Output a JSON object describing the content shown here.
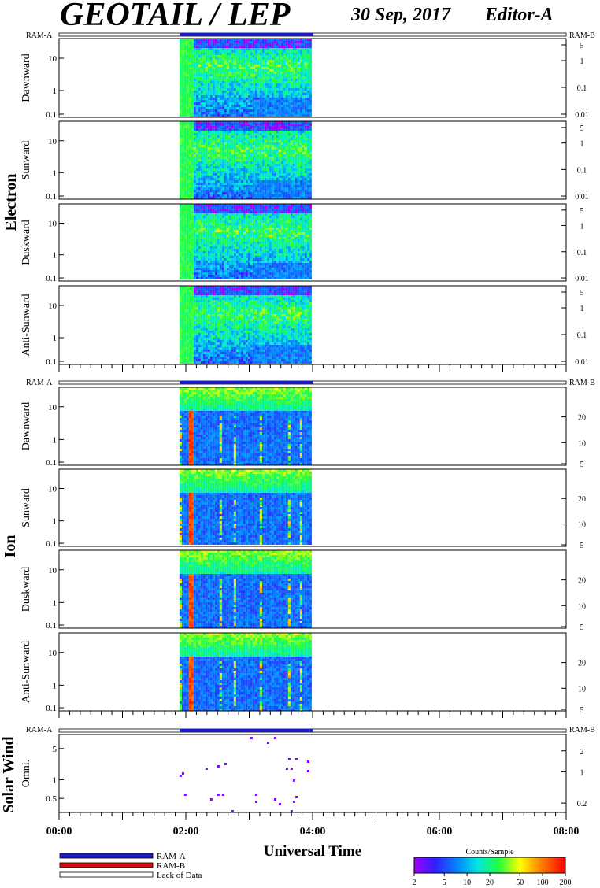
{
  "header": {
    "title": "GEOTAIL / LEP",
    "date": "30 Sep, 2017",
    "editor": "Editor-A"
  },
  "groups": [
    {
      "label": "Electron",
      "ram_a": "RAM-A",
      "ram_b": "RAM-B"
    },
    {
      "label": "Ion",
      "ram_a": "RAM-A",
      "ram_b": "RAM-B"
    },
    {
      "label": "Solar Wind",
      "ram_a": "RAM-A",
      "ram_b": "RAM-B"
    }
  ],
  "chart_data": {
    "type": "heatmap",
    "xlabel": "Universal Time",
    "x_ticks": [
      "00:00",
      "02:00",
      "04:00",
      "06:00",
      "08:00"
    ],
    "xlim_hours": [
      0,
      8
    ],
    "data_coverage_hours": [
      1.9,
      4.0
    ],
    "y_scale": "log",
    "panels": [
      {
        "group": 0,
        "label": "Dawnward",
        "yticks": [
          "0.1",
          "1",
          "10"
        ],
        "right_ticks": [
          "5",
          "1",
          "0.1",
          "0.01"
        ],
        "style": "electron"
      },
      {
        "group": 0,
        "label": "Sunward",
        "yticks": [
          "0.1",
          "1",
          "10"
        ],
        "right_ticks": [
          "5",
          "1",
          "0.1",
          "0.01"
        ],
        "style": "electron"
      },
      {
        "group": 0,
        "label": "Duskward",
        "yticks": [
          "0.1",
          "1",
          "10"
        ],
        "right_ticks": [
          "5",
          "1",
          "0.1",
          "0.01"
        ],
        "style": "electron"
      },
      {
        "group": 0,
        "label": "Anti-Sunward",
        "yticks": [
          "0.1",
          "1",
          "10"
        ],
        "right_ticks": [
          "5",
          "1",
          "0.1",
          "0.01"
        ],
        "style": "electron"
      },
      {
        "group": 1,
        "label": "Dawnward",
        "yticks": [
          "0.1",
          "1",
          "10"
        ],
        "right_ticks": [
          "20",
          "10",
          "5"
        ],
        "style": "ion"
      },
      {
        "group": 1,
        "label": "Sunward",
        "yticks": [
          "0.1",
          "1",
          "10"
        ],
        "right_ticks": [
          "20",
          "10",
          "5"
        ],
        "style": "ion"
      },
      {
        "group": 1,
        "label": "Duskward",
        "yticks": [
          "0.1",
          "1",
          "10"
        ],
        "right_ticks": [
          "20",
          "10",
          "5"
        ],
        "style": "ion"
      },
      {
        "group": 1,
        "label": "Anti-Sunward",
        "yticks": [
          "0.1",
          "1",
          "10"
        ],
        "right_ticks": [
          "20",
          "10",
          "5"
        ],
        "style": "ion"
      },
      {
        "group": 2,
        "label": "Omni.",
        "yticks": [
          "0.5",
          "1",
          "5"
        ],
        "right_ticks": [
          "2",
          "1",
          "0.2"
        ],
        "style": "solarwind"
      }
    ],
    "legend": [
      {
        "name": "RAM-A",
        "color": "#1a1acc"
      },
      {
        "name": "RAM-B",
        "color": "#d01010"
      },
      {
        "name": "Lack of Data",
        "color": "#ffffff"
      }
    ],
    "colorbar": {
      "title": "Counts/Sample",
      "ticks": [
        "2",
        "5",
        "10",
        "20",
        "50",
        "100",
        "200"
      ],
      "scale": "log",
      "range": [
        2,
        200
      ]
    }
  }
}
